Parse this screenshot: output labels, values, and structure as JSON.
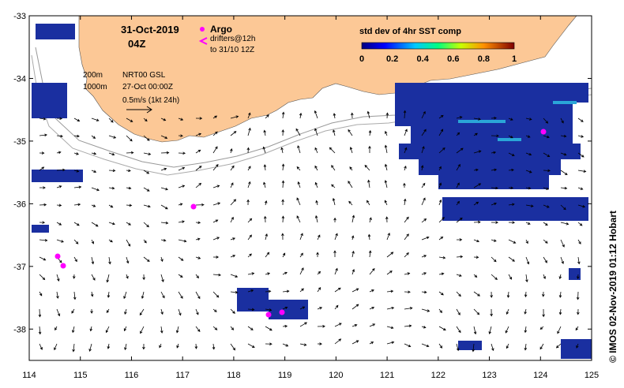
{
  "map": {
    "date": "31-Oct-2019",
    "time": "04Z",
    "argo_label": "Argo",
    "drifters_label": "drifters@12h",
    "drifters_to": "to 31/10 12Z",
    "contour_200": "200m",
    "contour_1000": "1000m",
    "model_label": "NRT00 GSL",
    "model_date": "27-Oct 00:00Z",
    "vector_scale": "0.5m/s (1kt 24h)",
    "colorbar_title": "std dev of 4hr SST comp",
    "colorbar_ticks": [
      "0",
      "0.2",
      "0.4",
      "0.6",
      "0.8",
      "1"
    ],
    "credit": "© IMOS 02-Nov-2019 01:12 Hobart",
    "x_ticks": [
      "114",
      "115",
      "116",
      "117",
      "118",
      "119",
      "120",
      "121",
      "122",
      "123",
      "124",
      "125"
    ],
    "y_ticks": [
      "-33",
      "-34",
      "-35",
      "-36",
      "-37",
      "-38"
    ],
    "xlim": [
      114,
      125
    ],
    "ylim": [
      -38.5,
      -33
    ],
    "colors": {
      "land": "#fcc896",
      "drifter": "#ff00ff",
      "sst_low": "#1a2fa0"
    }
  }
}
